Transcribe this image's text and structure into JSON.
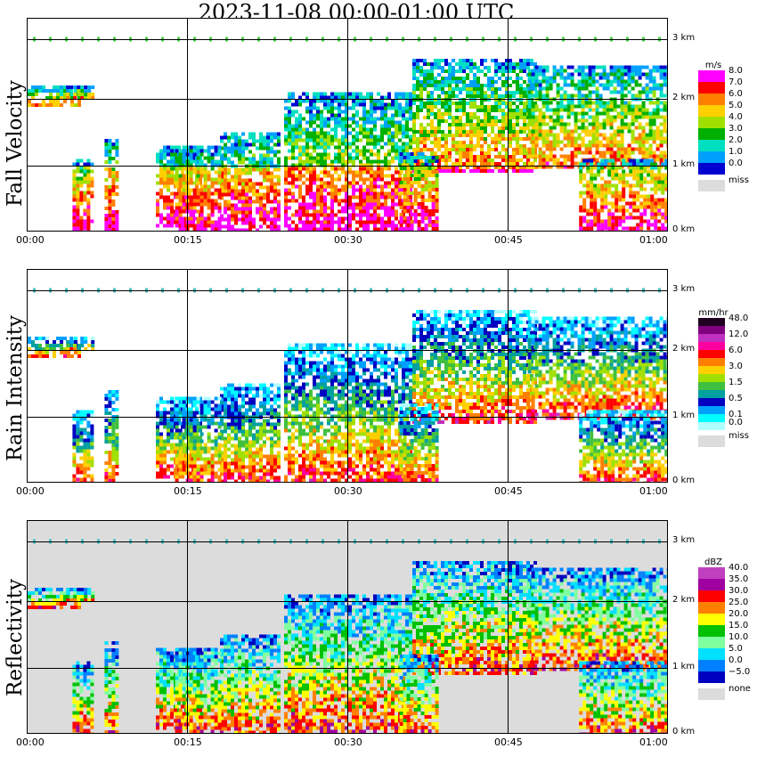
{
  "title": "2023-11-08   00:00-01:00 UTC",
  "x_ticks": [
    "00:00",
    "00:15",
    "00:30",
    "00:45",
    "01:00"
  ],
  "height_ticks": [
    "3 km",
    "2 km",
    "1 km",
    "0 km"
  ],
  "chart_data": [
    {
      "type": "heatmap",
      "title": "Fall Velocity",
      "unit": "m/s",
      "x_range": [
        "00:00",
        "01:00"
      ],
      "y_range_km": [
        0,
        3.2
      ],
      "legend": [
        {
          "label": "8.0",
          "color": "#ff00ff"
        },
        {
          "label": "7.0",
          "color": "#ff0000"
        },
        {
          "label": "6.0",
          "color": "#ff8000"
        },
        {
          "label": "5.0",
          "color": "#ffd000"
        },
        {
          "label": "4.0",
          "color": "#a0e000"
        },
        {
          "label": "3.0",
          "color": "#00b000"
        },
        {
          "label": "2.0",
          "color": "#00e0c0"
        },
        {
          "label": "1.0",
          "color": "#00a0ff"
        },
        {
          "label": "0.0",
          "color": "#0000d0"
        }
      ],
      "missing_label": "miss",
      "background": "#ffffff"
    },
    {
      "type": "heatmap",
      "title": "Rain Intensity",
      "unit": "mm/hr",
      "x_range": [
        "00:00",
        "01:00"
      ],
      "y_range_km": [
        0,
        3.2
      ],
      "legend": [
        {
          "label": "48.0",
          "color": "#200020"
        },
        {
          "label": "",
          "color": "#800080"
        },
        {
          "label": "12.0",
          "color": "#c030c0"
        },
        {
          "label": "",
          "color": "#ff00a0"
        },
        {
          "label": "6.0",
          "color": "#ff0000"
        },
        {
          "label": "",
          "color": "#ff8000"
        },
        {
          "label": "3.0",
          "color": "#ffd000"
        },
        {
          "label": "",
          "color": "#a0e000"
        },
        {
          "label": "1.5",
          "color": "#40c040"
        },
        {
          "label": "",
          "color": "#00a0a0"
        },
        {
          "label": "0.5",
          "color": "#0000c0"
        },
        {
          "label": "",
          "color": "#00a0ff"
        },
        {
          "label": "0.1",
          "color": "#00ffff"
        },
        {
          "label": "0.0",
          "color": "#b0ffff"
        }
      ],
      "missing_label": "miss",
      "background": "#ffffff"
    },
    {
      "type": "heatmap",
      "title": "Reflectivity",
      "unit": "dBZ",
      "x_range": [
        "00:00",
        "01:00"
      ],
      "y_range_km": [
        0,
        3.2
      ],
      "legend": [
        {
          "label": "40.0",
          "color": "#c040c0"
        },
        {
          "label": "35.0",
          "color": "#a000a0"
        },
        {
          "label": "30.0",
          "color": "#ff0000"
        },
        {
          "label": "25.0",
          "color": "#ff8000"
        },
        {
          "label": "20.0",
          "color": "#ffff00"
        },
        {
          "label": "15.0",
          "color": "#00c000"
        },
        {
          "label": "10.0",
          "color": "#80ffa0"
        },
        {
          "label": "5.0",
          "color": "#00e0ff"
        },
        {
          "label": "0.0",
          "color": "#0080ff"
        },
        {
          "label": "−5.0",
          "color": "#0000c0"
        }
      ],
      "missing_label": "none",
      "background": "#dcdcdc"
    }
  ]
}
